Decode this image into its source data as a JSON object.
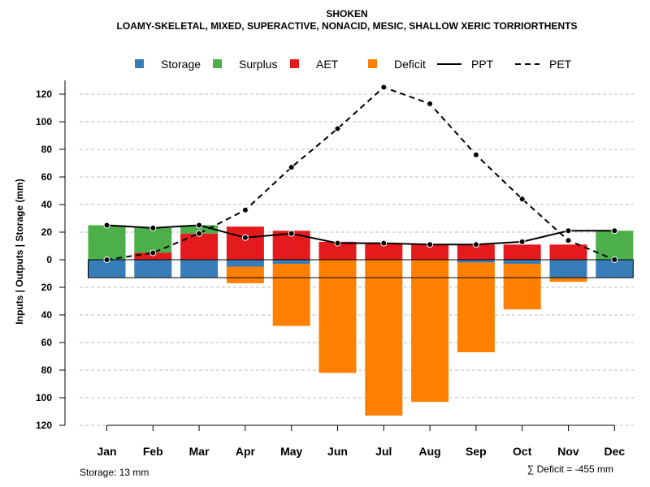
{
  "chart_data": {
    "type": "bar",
    "title": "SHOKEN",
    "subtitle": "LOAMY-SKELETAL, MIXED, SUPERACTIVE, NONACID, MESIC, SHALLOW XERIC TORRIORTHENTS",
    "ylabel": "Inputs | Outputs | Storage     (mm)",
    "ylim": [
      -120,
      130
    ],
    "yticks": [
      120,
      100,
      80,
      60,
      40,
      20,
      0,
      -20,
      -40,
      -60,
      -80,
      -100,
      -120
    ],
    "ytick_labels": [
      "120",
      "100",
      "80",
      "60",
      "40",
      "20",
      "0",
      "20",
      "40",
      "60",
      "80",
      "100",
      "120"
    ],
    "categories": [
      "Jan",
      "Feb",
      "Mar",
      "Apr",
      "May",
      "Jun",
      "Jul",
      "Aug",
      "Sep",
      "Oct",
      "Nov",
      "Dec"
    ],
    "legend": [
      "Storage",
      "Surplus",
      "AET",
      "Deficit",
      "PPT",
      "PET"
    ],
    "colors": {
      "storage": "#377EB8",
      "surplus": "#4DAF4A",
      "aet": "#E41A1C",
      "deficit": "#FF7F00",
      "line": "#000000",
      "grid": "#BEBEBE"
    },
    "series": [
      {
        "name": "Storage",
        "values": [
          -13,
          -13,
          -13,
          -5,
          -3,
          0,
          0,
          0,
          -2,
          -3,
          -13,
          -13
        ]
      },
      {
        "name": "Surplus",
        "values": [
          25,
          18,
          6,
          0,
          0,
          0,
          0,
          0,
          0,
          0,
          0,
          21
        ]
      },
      {
        "name": "AET",
        "values": [
          0,
          5,
          19,
          24,
          21,
          13,
          12,
          11,
          11,
          11,
          11,
          0
        ]
      },
      {
        "name": "Deficit",
        "values": [
          0,
          0,
          0,
          -12,
          -45,
          -82,
          -113,
          -103,
          -65,
          -33,
          -3,
          0
        ]
      },
      {
        "name": "PPT",
        "values": [
          25,
          23,
          25,
          16,
          19,
          12,
          12,
          11,
          11,
          13,
          21,
          21
        ]
      },
      {
        "name": "PET",
        "values": [
          0,
          5,
          19,
          36,
          67,
          95,
          125,
          113,
          76,
          44,
          14,
          0
        ]
      }
    ],
    "storage_total": 13,
    "storage_note": "Storage: 13 mm",
    "deficit_note": "∑ Deficit = -455 mm"
  }
}
